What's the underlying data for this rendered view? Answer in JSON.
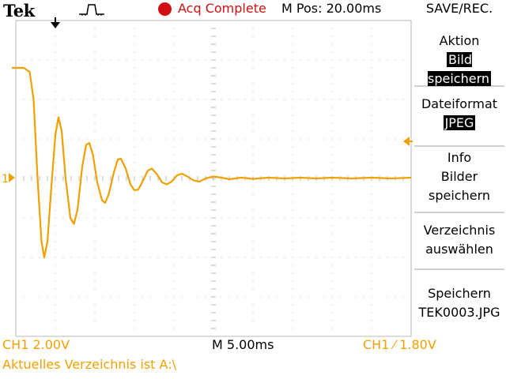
{
  "header": {
    "brand": "Tek",
    "acq_status": "Acq Complete",
    "m_pos": "M Pos: 20.00ms",
    "menu_title": "SAVE/REC."
  },
  "side_menu": {
    "aktion_label": "Aktion",
    "aktion_value": "Bild speichern",
    "dateiformat_label": "Dateiformat",
    "dateiformat_value": "JPEG",
    "info_line1": "Info",
    "info_line2": "Bilder",
    "info_line3": "speichern",
    "verz_line1": "Verzeichnis",
    "verz_line2": "auswählen",
    "speichern_line1": "Speichern",
    "speichern_line2": "TEK0003.JPG"
  },
  "status_bar": {
    "ch1_scale": "CH1  2.00V",
    "timebase": "M 5.00ms",
    "trigger": "CH1 ⁄ 1.80V",
    "directory": "Aktuelles Verzeichnis ist A:\\"
  },
  "markers": {
    "channel_marker": "1"
  },
  "colors": {
    "trace": "#f0a000",
    "acq_dot": "#d01010",
    "grid": "#b8b8b8"
  },
  "waveform": {
    "type": "line",
    "description_units": "divisions",
    "x_divisions": 10,
    "y_divisions": 8,
    "baseline_div": 0,
    "samples": [
      [
        -0.1,
        2.8
      ],
      [
        0.2,
        2.8
      ],
      [
        0.35,
        2.7
      ],
      [
        0.45,
        2.0
      ],
      [
        0.55,
        0.0
      ],
      [
        0.65,
        -1.6
      ],
      [
        0.72,
        -2.0
      ],
      [
        0.8,
        -1.6
      ],
      [
        0.9,
        -0.2
      ],
      [
        1.0,
        1.1
      ],
      [
        1.08,
        1.55
      ],
      [
        1.16,
        1.2
      ],
      [
        1.26,
        0.0
      ],
      [
        1.38,
        -1.0
      ],
      [
        1.47,
        -1.15
      ],
      [
        1.56,
        -0.8
      ],
      [
        1.68,
        0.3
      ],
      [
        1.78,
        0.85
      ],
      [
        1.86,
        0.9
      ],
      [
        1.95,
        0.6
      ],
      [
        2.06,
        -0.1
      ],
      [
        2.18,
        -0.55
      ],
      [
        2.26,
        -0.62
      ],
      [
        2.35,
        -0.4
      ],
      [
        2.48,
        0.15
      ],
      [
        2.58,
        0.48
      ],
      [
        2.66,
        0.5
      ],
      [
        2.78,
        0.25
      ],
      [
        2.9,
        -0.15
      ],
      [
        3.0,
        -0.3
      ],
      [
        3.1,
        -0.28
      ],
      [
        3.22,
        -0.05
      ],
      [
        3.34,
        0.2
      ],
      [
        3.44,
        0.25
      ],
      [
        3.56,
        0.12
      ],
      [
        3.7,
        -0.1
      ],
      [
        3.82,
        -0.15
      ],
      [
        3.94,
        -0.08
      ],
      [
        4.08,
        0.08
      ],
      [
        4.2,
        0.12
      ],
      [
        4.34,
        0.05
      ],
      [
        4.5,
        -0.05
      ],
      [
        4.64,
        -0.08
      ],
      [
        4.8,
        0.0
      ],
      [
        5.0,
        0.05
      ],
      [
        5.2,
        0.02
      ],
      [
        5.4,
        -0.02
      ],
      [
        5.7,
        0.02
      ],
      [
        6.0,
        -0.01
      ],
      [
        6.4,
        0.02
      ],
      [
        6.8,
        0.0
      ],
      [
        7.2,
        0.02
      ],
      [
        7.6,
        0.0
      ],
      [
        8.0,
        0.02
      ],
      [
        8.5,
        0.0
      ],
      [
        9.0,
        0.02
      ],
      [
        9.5,
        0.0
      ],
      [
        10.0,
        0.02
      ]
    ]
  }
}
